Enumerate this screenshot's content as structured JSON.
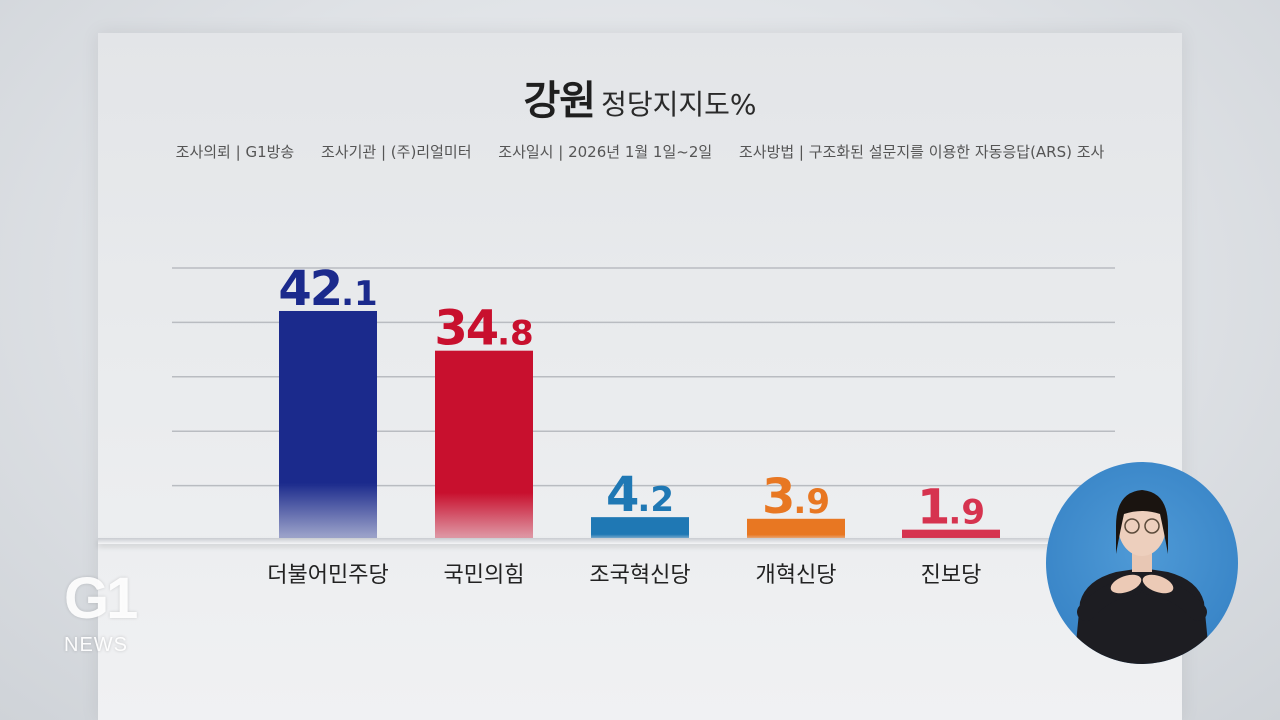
{
  "title": {
    "region": "강원",
    "subtitle": "정당지지도%"
  },
  "meta": {
    "client": "조사의뢰 | G1방송",
    "agency": "조사기관 | (주)리얼미터",
    "date": "조사일시 | 2026년 1월 1일~2일",
    "method": "조사방법 | 구조화된 설문지를 이용한 자동응답(ARS) 조사"
  },
  "chart_data": {
    "type": "bar",
    "categories": [
      "더불어민주당",
      "국민의힘",
      "조국혁신당",
      "개혁신당",
      "진보당"
    ],
    "values": [
      42.1,
      34.8,
      4.2,
      3.9,
      1.9
    ],
    "colors": [
      "#1b2a8c",
      "#c8102e",
      "#1f78b4",
      "#e87722",
      "#d6334f"
    ],
    "title": "강원 정당지지도%",
    "ylim": [
      0,
      50
    ],
    "grid": true
  },
  "logo": {
    "brand": "G1",
    "news": "NEWS"
  },
  "signer": {
    "icon": "sign-language-interpreter"
  }
}
